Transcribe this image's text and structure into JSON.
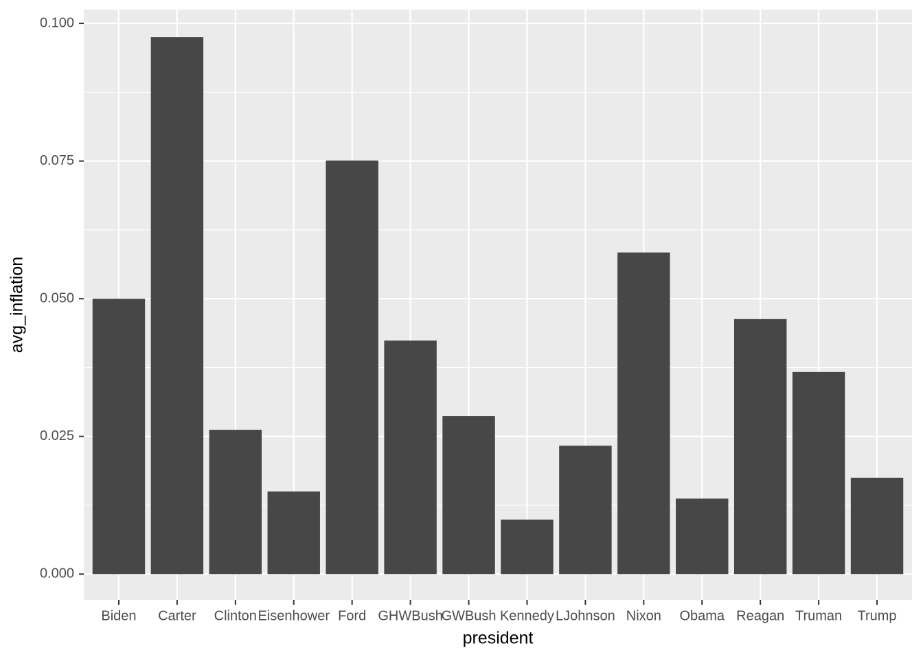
{
  "chart_data": {
    "type": "bar",
    "x_label": "president",
    "y_label": "avg_inflation",
    "categories": [
      "Biden",
      "Carter",
      "Clinton",
      "Eisenhower",
      "Ford",
      "GHWBush",
      "GWBush",
      "Kennedy",
      "LJohnson",
      "Nixon",
      "Obama",
      "Reagan",
      "Truman",
      "Trump"
    ],
    "values": [
      0.05,
      0.0975,
      0.0262,
      0.015,
      0.0751,
      0.0424,
      0.0287,
      0.0099,
      0.0233,
      0.0584,
      0.0137,
      0.0463,
      0.0367,
      0.0175
    ],
    "color": "#474747",
    "ylim": [
      -0.0047,
      0.1025
    ],
    "yticks": [
      {
        "value": 0,
        "label": "0.000"
      },
      {
        "value": 0.025,
        "label": "0.025"
      },
      {
        "value": 0.05,
        "label": "0.050"
      },
      {
        "value": 0.075,
        "label": "0.075"
      },
      {
        "value": 0.1,
        "label": "0.100"
      }
    ],
    "grid": true
  }
}
